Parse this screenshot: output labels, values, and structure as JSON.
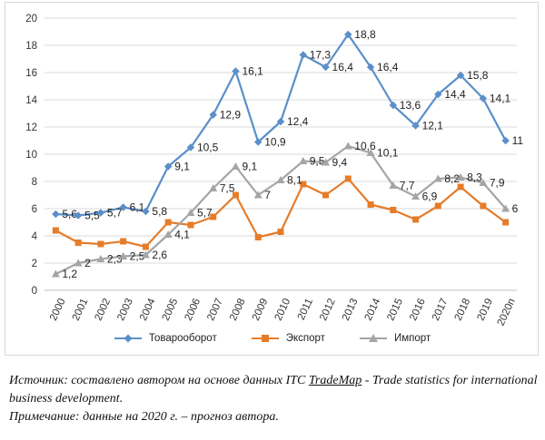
{
  "chart_data": {
    "type": "line",
    "categories": [
      "2000",
      "2001",
      "2002",
      "2003",
      "2004",
      "2005",
      "2006",
      "2007",
      "2008",
      "2009",
      "2010",
      "2011",
      "2012",
      "2013",
      "2014",
      "2015",
      "2016",
      "2017",
      "2018",
      "2019",
      "2020п"
    ],
    "ylim": [
      0,
      20
    ],
    "yticks": [
      0,
      2,
      4,
      6,
      8,
      10,
      12,
      14,
      16,
      18,
      20
    ],
    "grid": true,
    "legend": "bottom",
    "series": [
      {
        "name": "Товарооборот",
        "color": "#5b8fc9",
        "marker": "diamond",
        "values": [
          5.6,
          5.5,
          5.7,
          6.1,
          5.8,
          9.1,
          10.5,
          12.9,
          16.1,
          10.9,
          12.4,
          17.3,
          16.4,
          18.8,
          16.4,
          13.6,
          12.1,
          14.4,
          15.8,
          14.1,
          11
        ],
        "labels": [
          "5,6",
          "5,5",
          "5,7",
          "6,1",
          "5,8",
          "9,1",
          "10,5",
          "12,9",
          "16,1",
          "10,9",
          "12,4",
          "17,3",
          "16,4",
          "18,8",
          "16,4",
          "13,6",
          "12,1",
          "14,4",
          "15,8",
          "14,1",
          "11"
        ]
      },
      {
        "name": "Экспорт",
        "color": "#e57c2a",
        "marker": "square",
        "values": [
          4.4,
          3.5,
          3.4,
          3.6,
          3.2,
          5.0,
          4.8,
          5.4,
          7.0,
          3.9,
          4.3,
          7.8,
          7.0,
          8.2,
          6.3,
          5.9,
          5.2,
          6.2,
          7.6,
          6.2,
          5.0
        ],
        "labels": []
      },
      {
        "name": "Импорт",
        "color": "#a5a5a5",
        "marker": "triangle",
        "values": [
          1.2,
          2.0,
          2.3,
          2.5,
          2.6,
          4.1,
          5.7,
          7.5,
          9.1,
          7.0,
          8.1,
          9.5,
          9.4,
          10.6,
          10.1,
          7.7,
          6.9,
          8.2,
          8.3,
          7.9,
          6.0
        ],
        "labels": [
          "1,2",
          "2",
          "2,3",
          "2,5",
          "2,6",
          "4,1",
          "5,7",
          "7,5",
          "9,1",
          "7",
          "8,1",
          "9,5",
          "9,4",
          "10,6",
          "10,1",
          "7,7",
          "6,9",
          "8,2",
          "8,3",
          "7,9",
          "6"
        ]
      }
    ]
  },
  "caption": {
    "line1_a": "Источник: составлено автором на основе данных ITC ",
    "line1_link": "TradeMap",
    "line1_b": " - Trade statistics for international business development.",
    "line2": "Примечание: данные на 2020 г. – прогноз автора."
  }
}
